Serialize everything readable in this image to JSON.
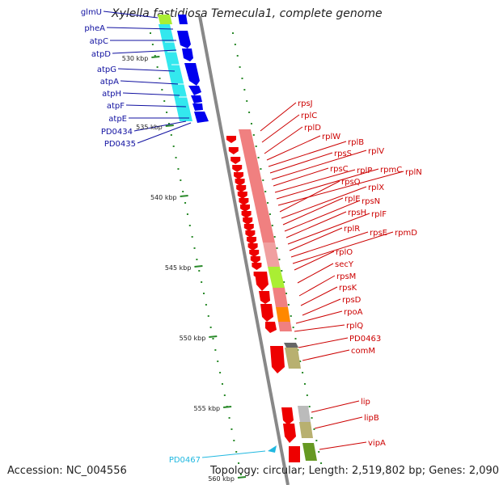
{
  "title": "Xylella fastidiosa Temecula1, complete genome",
  "footer": {
    "accession": "Accession: NC_004556",
    "topology": "Topology: circular; Length: 2,519,802 bp; Genes: 2,090"
  },
  "scale_labels": [
    "530 kbp",
    "535 kbp",
    "540 kbp",
    "545 kbp",
    "550 kbp",
    "555 kbp",
    "560 kbp"
  ],
  "genes_left": [
    "glmU",
    "pheA",
    "atpC",
    "atpD",
    "atpG",
    "atpA",
    "atpH",
    "atpF",
    "atpE",
    "PD0434",
    "PD0435"
  ],
  "genes_right": [
    "rpsJ",
    "rplC",
    "rplD",
    "rplW",
    "rplB",
    "rpsS",
    "rplV",
    "rpsC",
    "rplP",
    "rpmC",
    "rplN",
    "rpsQ",
    "rplX",
    "rplE",
    "rpsN",
    "rpsH",
    "rplF",
    "rplR",
    "rpsE",
    "rpmD",
    "rplO",
    "secY",
    "rpsM",
    "rpsK",
    "rpsD",
    "rpoA",
    "rplQ",
    "PD0463",
    "comM",
    "lip",
    "lipB",
    "vipA"
  ],
  "gene_cyan": "PD0467",
  "colors": {
    "blue_label": "#1010a0",
    "red_label": "#cc0000",
    "cyan_label": "#20b8e0",
    "backbone": "#888888",
    "scale_tick": "#2a8a2a",
    "gene_blue": "#0000ee",
    "gene_red": "#ee0000",
    "band_cyan": "#33e8ee",
    "band_pink": "#f08080",
    "band_lime": "#aaee33",
    "band_orange": "#ff8800",
    "band_olive": "#b8b070",
    "band_green": "#669922"
  }
}
